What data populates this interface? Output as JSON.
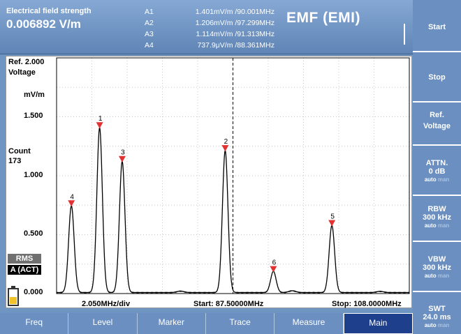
{
  "header": {
    "field_label": "Electrical field strength",
    "field_value": "0.006892 V/m",
    "markers": [
      {
        "id": "A1",
        "value": "1.401mV/m /90.001MHz"
      },
      {
        "id": "A2",
        "value": "1.206mV/m /97.299MHz"
      },
      {
        "id": "A3",
        "value": "1.114mV/m /91.313MHz"
      },
      {
        "id": "A4",
        "value": "737.9μV/m /88.361MHz"
      }
    ],
    "title": "EMF (EMI)"
  },
  "plot": {
    "ref_label": "Ref. 2.000",
    "ref_label2": "Voltage",
    "unit": "mV/m",
    "count_label": "Count",
    "count_value": "173",
    "y_ticks": [
      "1.500",
      "1.000",
      "0.500",
      "0.000"
    ],
    "detector": "RMS",
    "trace_mode": "A (ACT)",
    "div_label": "2.050MHz/div",
    "start_label": "Start: 87.50000MHz",
    "stop_label": "Stop: 108.0000MHz"
  },
  "chart_data": {
    "type": "line",
    "x_range": [
      87.5,
      108.0
    ],
    "y_range": [
      0.0,
      2.0
    ],
    "y_unit": "mV/m",
    "peaks": [
      {
        "marker": "1",
        "freq": 90.001,
        "level": 1.401
      },
      {
        "marker": "2",
        "freq": 97.299,
        "level": 1.206
      },
      {
        "marker": "3",
        "freq": 91.313,
        "level": 1.114
      },
      {
        "marker": "4",
        "freq": 88.361,
        "level": 0.738
      },
      {
        "marker": "5",
        "freq": 103.5,
        "level": 0.57
      },
      {
        "marker": "6",
        "freq": 100.1,
        "level": 0.18
      }
    ],
    "center_line_freq": 97.75,
    "grid": true
  },
  "softkeys": [
    {
      "label": "Start"
    },
    {
      "label": "Stop"
    },
    {
      "label": "Ref.",
      "label2": "Voltage"
    },
    {
      "label": "ATTN.",
      "label2": "0 dB",
      "sub_on": "auto",
      "sub_off": "man"
    },
    {
      "label": "RBW",
      "label2": "300 kHz",
      "sub_on": "auto",
      "sub_off": "man"
    },
    {
      "label": "VBW",
      "label2": "300 kHz",
      "sub_on": "auto",
      "sub_off": "man"
    },
    {
      "label": "SWT",
      "label2": "24.0 ms",
      "sub_on": "auto",
      "sub_off": "man"
    }
  ],
  "tabs": [
    {
      "label": "Freq"
    },
    {
      "label": "Level"
    },
    {
      "label": "Marker"
    },
    {
      "label": "Trace"
    },
    {
      "label": "Measure"
    },
    {
      "label": "Main"
    }
  ]
}
